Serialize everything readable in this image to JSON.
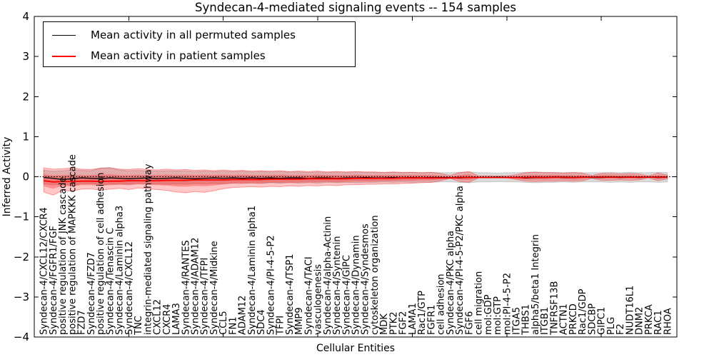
{
  "title": "Syndecan-4-mediated signaling events -- 154 samples",
  "legend": {
    "items": [
      {
        "label": "Mean activity in all permuted samples",
        "color": "#000000"
      },
      {
        "label": "Mean activity in patient samples",
        "color": "#ff0000"
      }
    ]
  },
  "axes": {
    "x_label": "Cellular Entities",
    "y_label": "Inferred Activity",
    "y_ticks": [
      "4",
      "3",
      "2",
      "1",
      "0",
      "−1",
      "−2",
      "−3",
      "−4"
    ],
    "y_tick_values": [
      4,
      3,
      2,
      1,
      0,
      -1,
      -2,
      -3,
      -4
    ]
  },
  "chart_data": {
    "type": "line",
    "title": "Syndecan-4-mediated signaling events -- 154 samples",
    "xlabel": "Cellular Entities",
    "ylabel": "Inferred Activity",
    "ylim": [
      -4,
      4
    ],
    "grid": false,
    "legend_position": "upper left",
    "zero_line": true,
    "x_major_tick_every": 10,
    "categories": [
      "Syndecan-4/CXCL12/CXCR4",
      "Syndecan-4/FGFR1/FGF",
      "positive regulation of JNK cascade",
      "positive regulation of MAPKKK cascade",
      "FZD7",
      "Syndecan-4/FZD7",
      "positive regulation of cell adhesion",
      "Syndecan-4/Tenascin C",
      "Syndecan-4/Laminin alpha3",
      "Syndecan-4/CXCL12",
      "TNC",
      "integrin-mediated signaling pathway",
      "CXCL12",
      "CXCR4",
      "LAMA3",
      "Syndecan-4/RANTES",
      "Syndecan-4/ADAM12",
      "Syndecan-4/TFPI",
      "Syndecan-4/Midkine",
      "CCL5",
      "FN1",
      "ADAM12",
      "Syndecan-4/Laminin alpha1",
      "SDC4",
      "Syndecan-4/PI-4-5-P2",
      "TFPI",
      "Syndecan-4/TSP1",
      "MMP9",
      "Syndecan-4/TACI",
      "vasculogenesis",
      "Syndecan-4/alpha-Actinin",
      "Syndecan-4/Syntenin",
      "Syndecan-4/GIPC",
      "Syndecan-4/Dynamin",
      "Syndecan-4/Syndesmos",
      "cytoskeleton organization",
      "MDK",
      "PTK2",
      "FGF2",
      "LAMA1",
      "Rac1/GTP",
      "FGFR1",
      "cell adhesion",
      "Syndecan-4/PKC alpha",
      "Syndecan-4/PI-4-5-P2/PKC alpha",
      "FGF6",
      "cell migration",
      "mol:GDP",
      "mol:GTP",
      "mol:PI-4-5-P2",
      "ITGA5",
      "THBS1",
      "alpha5/beta1 Integrin",
      "ITGB1",
      "TNFRSF13B",
      "ACTN1",
      "PRKCD",
      "Rac1/GDP",
      "SDCBP",
      "GIPC1",
      "PLG",
      "F2",
      "NUDT16L1",
      "DNM2",
      "PRKCA",
      "RAC1",
      "RHOA"
    ],
    "series": [
      {
        "name": "Mean activity in all permuted samples",
        "color": "#000000",
        "values": [
          -0.02,
          -0.04,
          -0.07,
          -0.05,
          -0.03,
          -0.04,
          -0.05,
          -0.03,
          -0.04,
          -0.05,
          -0.04,
          -0.03,
          -0.05,
          -0.04,
          -0.03,
          -0.04,
          -0.05,
          -0.04,
          -0.03,
          -0.04,
          -0.03,
          -0.04,
          -0.03,
          -0.04,
          -0.03,
          -0.04,
          -0.03,
          -0.03,
          -0.04,
          -0.03,
          -0.03,
          -0.04,
          -0.03,
          -0.03,
          -0.02,
          -0.03,
          -0.03,
          -0.02,
          -0.03,
          -0.02,
          -0.03,
          -0.02,
          -0.02,
          -0.02,
          -0.03,
          -0.02,
          -0.02,
          -0.02,
          -0.01,
          -0.02,
          -0.02,
          -0.03,
          -0.02,
          -0.02,
          -0.01,
          -0.02,
          -0.02,
          -0.01,
          -0.02,
          -0.02,
          -0.01,
          -0.02,
          -0.01,
          -0.02,
          -0.01,
          -0.02,
          -0.01
        ]
      },
      {
        "name": "Mean activity in patient samples",
        "color": "#ff0000",
        "values": [
          -0.1,
          -0.13,
          -0.12,
          -0.12,
          -0.11,
          -0.11,
          -0.12,
          -0.11,
          -0.11,
          -0.1,
          -0.1,
          -0.1,
          -0.1,
          -0.09,
          -0.09,
          -0.09,
          -0.08,
          -0.08,
          -0.08,
          -0.08,
          -0.07,
          -0.07,
          -0.07,
          -0.07,
          -0.06,
          -0.06,
          -0.06,
          -0.06,
          -0.05,
          -0.05,
          -0.05,
          -0.05,
          -0.05,
          -0.04,
          -0.04,
          -0.04,
          -0.04,
          -0.04,
          -0.03,
          -0.03,
          -0.03,
          -0.03,
          -0.03,
          -0.03,
          -0.02,
          -0.02,
          -0.02,
          -0.02,
          -0.02,
          -0.02,
          -0.02,
          -0.02,
          -0.01,
          -0.02,
          -0.01,
          -0.01,
          -0.02,
          -0.01,
          -0.01,
          -0.01,
          -0.01,
          -0.01,
          -0.01,
          -0.01,
          -0.01,
          -0.01,
          -0.01
        ]
      }
    ],
    "bands": [
      {
        "name": "permuted-sample-range",
        "color": "#999999",
        "fill_opacity": 0.35,
        "stroke_opacity": 0.45,
        "upper": [
          0.16,
          0.14,
          0.15,
          0.18,
          0.16,
          0.15,
          0.22,
          0.23,
          0.17,
          0.15,
          0.16,
          0.14,
          0.14,
          0.15,
          0.14,
          0.15,
          0.13,
          0.14,
          0.13,
          0.14,
          0.13,
          0.14,
          0.12,
          0.13,
          0.12,
          0.13,
          0.12,
          0.12,
          0.11,
          0.12,
          0.11,
          0.12,
          0.11,
          0.12,
          0.11,
          0.11,
          0.1,
          0.11,
          0.1,
          0.11,
          0.1,
          0.11,
          0.1,
          0.1,
          0.11,
          0.12,
          0.1,
          0.1,
          0.09,
          0.1,
          0.1,
          0.11,
          0.12,
          0.11,
          0.11,
          0.1,
          0.11,
          0.1,
          0.1,
          0.1,
          0.11,
          0.1,
          0.11,
          0.1,
          0.1,
          0.11,
          0.1
        ],
        "lower": [
          -0.18,
          -0.2,
          -0.19,
          -0.21,
          -0.18,
          -0.17,
          -0.2,
          -0.19,
          -0.18,
          -0.19,
          -0.17,
          -0.18,
          -0.18,
          -0.19,
          -0.18,
          -0.19,
          -0.17,
          -0.18,
          -0.17,
          -0.18,
          -0.16,
          -0.17,
          -0.16,
          -0.17,
          -0.15,
          -0.16,
          -0.15,
          -0.16,
          -0.15,
          -0.16,
          -0.14,
          -0.15,
          -0.14,
          -0.15,
          -0.14,
          -0.14,
          -0.13,
          -0.14,
          -0.13,
          -0.14,
          -0.13,
          -0.14,
          -0.13,
          -0.13,
          -0.14,
          -0.15,
          -0.13,
          -0.13,
          -0.12,
          -0.13,
          -0.13,
          -0.14,
          -0.15,
          -0.14,
          -0.14,
          -0.13,
          -0.14,
          -0.13,
          -0.13,
          -0.13,
          -0.14,
          -0.13,
          -0.14,
          -0.13,
          -0.13,
          -0.14,
          -0.13
        ]
      },
      {
        "name": "patient-sample-range-outer",
        "color": "#ff0000",
        "fill_opacity": 0.22,
        "stroke_opacity": 0.35,
        "upper": [
          0.22,
          0.19,
          0.2,
          0.22,
          0.19,
          0.18,
          0.21,
          0.22,
          0.19,
          0.18,
          0.2,
          0.18,
          0.17,
          0.19,
          0.17,
          0.18,
          0.16,
          0.17,
          0.15,
          0.17,
          0.15,
          0.16,
          0.14,
          0.15,
          0.14,
          0.15,
          0.13,
          0.14,
          0.13,
          0.14,
          0.12,
          0.13,
          0.12,
          0.13,
          0.12,
          0.12,
          0.11,
          0.12,
          0.11,
          0.11,
          0.1,
          0.11,
          0.08,
          0.03,
          0.1,
          0.13,
          0.02,
          0.02,
          0.02,
          0.02,
          0.05,
          0.1,
          0.11,
          0.1,
          0.1,
          0.09,
          0.1,
          0.09,
          0.03,
          0.08,
          0.08,
          0.07,
          0.08,
          0.07,
          0.02,
          0.09,
          0.04
        ],
        "lower": [
          -0.38,
          -0.46,
          -0.34,
          -0.36,
          -0.31,
          -0.3,
          -0.34,
          -0.31,
          -0.29,
          -0.32,
          -0.28,
          -0.3,
          -0.32,
          -0.34,
          -0.38,
          -0.4,
          -0.37,
          -0.39,
          -0.35,
          -0.3,
          -0.27,
          -0.26,
          -0.25,
          -0.26,
          -0.24,
          -0.25,
          -0.23,
          -0.24,
          -0.22,
          -0.23,
          -0.21,
          -0.22,
          -0.2,
          -0.2,
          -0.19,
          -0.19,
          -0.18,
          -0.18,
          -0.17,
          -0.16,
          -0.15,
          -0.14,
          -0.1,
          -0.04,
          -0.12,
          -0.14,
          -0.03,
          -0.03,
          -0.03,
          -0.03,
          -0.07,
          -0.11,
          -0.12,
          -0.11,
          -0.11,
          -0.1,
          -0.11,
          -0.1,
          -0.04,
          -0.09,
          -0.09,
          -0.08,
          -0.09,
          -0.08,
          -0.03,
          -0.1,
          -0.05
        ]
      },
      {
        "name": "patient-sample-range-inner",
        "color": "#ff0000",
        "fill_opacity": 0.28,
        "stroke_opacity": 0,
        "upper": [
          0.06,
          0.03,
          0.04,
          0.05,
          0.04,
          0.04,
          0.05,
          0.06,
          0.04,
          0.04,
          0.05,
          0.04,
          0.04,
          0.05,
          0.04,
          0.05,
          0.04,
          0.05,
          0.04,
          0.05,
          0.04,
          0.05,
          0.04,
          0.04,
          0.04,
          0.05,
          0.04,
          0.04,
          0.04,
          0.05,
          0.04,
          0.04,
          0.04,
          0.05,
          0.04,
          0.04,
          0.04,
          0.04,
          0.04,
          0.04,
          0.04,
          0.04,
          0.03,
          0.0,
          0.04,
          0.06,
          0.0,
          0.0,
          0.0,
          0.0,
          0.02,
          0.04,
          0.05,
          0.04,
          0.05,
          0.04,
          0.04,
          0.04,
          0.01,
          0.04,
          0.04,
          0.03,
          0.04,
          0.03,
          0.01,
          0.04,
          0.02
        ],
        "lower": [
          -0.24,
          -0.3,
          -0.23,
          -0.24,
          -0.21,
          -0.21,
          -0.23,
          -0.21,
          -0.2,
          -0.21,
          -0.19,
          -0.2,
          -0.21,
          -0.22,
          -0.24,
          -0.25,
          -0.23,
          -0.24,
          -0.22,
          -0.19,
          -0.17,
          -0.17,
          -0.16,
          -0.17,
          -0.15,
          -0.16,
          -0.15,
          -0.15,
          -0.14,
          -0.14,
          -0.13,
          -0.14,
          -0.13,
          -0.12,
          -0.12,
          -0.12,
          -0.11,
          -0.11,
          -0.1,
          -0.1,
          -0.09,
          -0.09,
          -0.07,
          -0.04,
          -0.07,
          -0.08,
          -0.03,
          -0.03,
          -0.02,
          -0.03,
          -0.05,
          -0.07,
          -0.07,
          -0.07,
          -0.06,
          -0.06,
          -0.07,
          -0.06,
          -0.03,
          -0.05,
          -0.05,
          -0.05,
          -0.05,
          -0.05,
          -0.02,
          -0.06,
          -0.04
        ]
      }
    ]
  }
}
